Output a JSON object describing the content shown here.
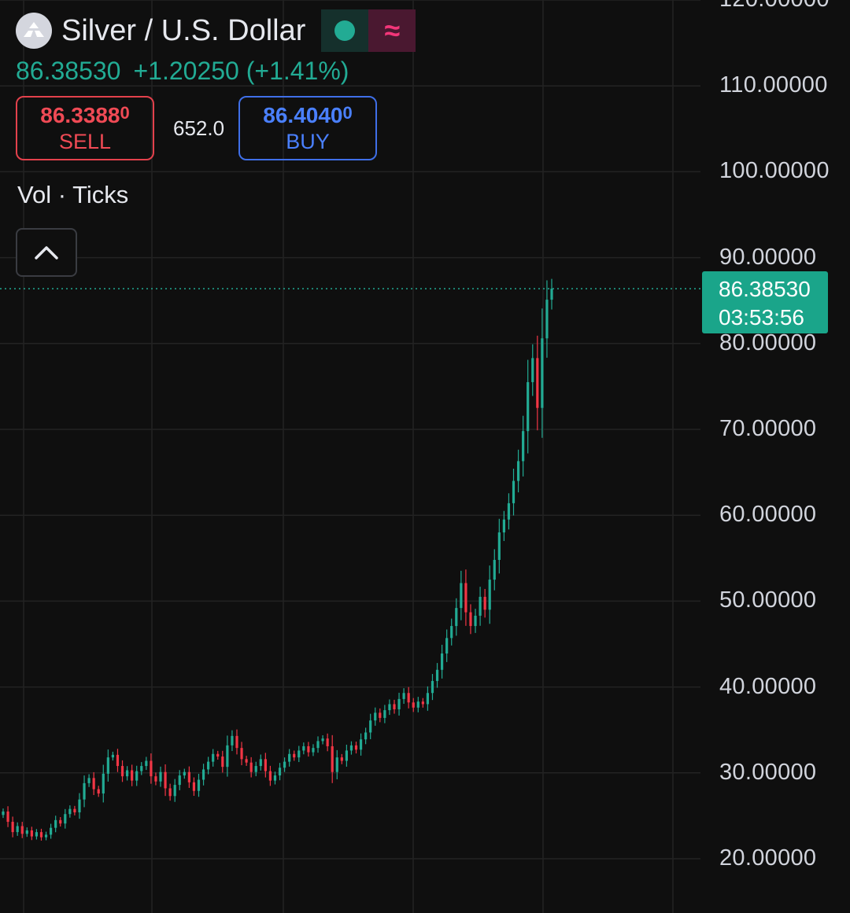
{
  "symbol": {
    "title": "Silver / U.S. Dollar",
    "logo_icon": "silver-bars-icon",
    "market_status_icon": "market-open-dot-icon",
    "delayed_icon": "approx-equal-icon"
  },
  "quote": {
    "last": "86.38530",
    "change": "+1.20250",
    "change_percent": "(+1.41%)"
  },
  "trade": {
    "sell_price_main": "86.3388",
    "sell_price_small": "0",
    "sell_label": "SELL",
    "spread": "652.0",
    "buy_price_main": "86.4040",
    "buy_price_small": "0",
    "buy_label": "BUY"
  },
  "indicators": {
    "volume_label": "Vol · Ticks",
    "collapse_icon": "chevron-up-icon"
  },
  "price_tag": {
    "price": "86.38530",
    "countdown": "03:53:56"
  },
  "colors": {
    "background": "#0f0f0f",
    "up": "#22ab94",
    "down": "#f23645",
    "grid": "#232323",
    "price_tag": "#1aa58a",
    "sell": "#f04a55",
    "buy": "#4a80ff"
  },
  "chart_data": {
    "type": "candlestick",
    "y_ticks": [
      "120.00000",
      "110.00000",
      "100.00000",
      "90.00000",
      "80.00000",
      "70.00000",
      "60.00000",
      "50.00000",
      "40.00000",
      "30.00000",
      "20.00000"
    ],
    "ylim": [
      16,
      120
    ],
    "grid": true,
    "last_price": 86.3853,
    "series": [
      {
        "name": "close",
        "values": [
          25.5,
          24.3,
          23.1,
          23.8,
          22.9,
          23.3,
          22.6,
          23.1,
          22.5,
          22.8,
          23.6,
          24.5,
          24.1,
          25.2,
          25.8,
          25.4,
          26.9,
          28.8,
          29.4,
          28.1,
          27.6,
          29.9,
          31.8,
          32.1,
          30.8,
          29.6,
          30.3,
          29.1,
          30.2,
          30.8,
          31.4,
          29.6,
          29.0,
          30.1,
          28.2,
          27.3,
          28.6,
          29.7,
          30.1,
          28.9,
          27.9,
          29.2,
          30.4,
          31.3,
          32.2,
          31.9,
          30.7,
          33.2,
          34.3,
          32.9,
          31.6,
          31.2,
          30.1,
          30.8,
          31.6,
          30.2,
          29.1,
          29.7,
          30.6,
          31.3,
          32.2,
          31.8,
          32.6,
          33.1,
          32.4,
          32.9,
          33.7,
          34.0,
          33.1,
          30.1,
          31.8,
          31.4,
          32.6,
          33.2,
          32.7,
          33.9,
          34.7,
          36.1,
          37.0,
          36.4,
          37.3,
          38.0,
          37.4,
          38.6,
          39.3,
          38.2,
          37.6,
          38.3,
          38.0,
          39.3,
          40.7,
          42.0,
          43.9,
          45.7,
          47.1,
          49.2,
          52.1,
          48.7,
          47.1,
          48.3,
          50.5,
          49.0,
          52.5,
          54.8,
          58.0,
          59.5,
          61.4,
          64.0,
          66.3,
          69.8,
          75.5,
          78.3,
          72.5,
          80.6,
          85.1,
          86.3853
        ]
      }
    ]
  }
}
